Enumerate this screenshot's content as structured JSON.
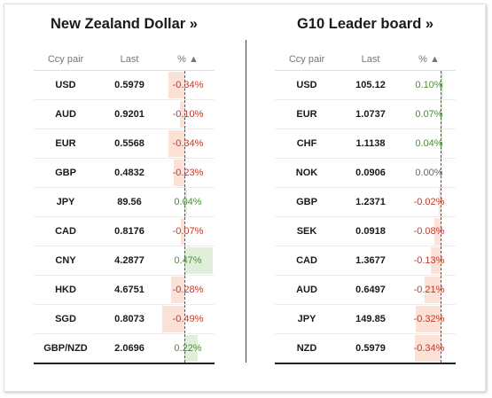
{
  "left_panel": {
    "title": "New Zealand Dollar »",
    "headers": {
      "pair": "Ccy pair",
      "last": "Last",
      "pct": "% ▲"
    },
    "zero_frac": 0.44,
    "max_abs": 0.5,
    "rows": [
      {
        "pair": "USD",
        "last": "0.5979",
        "pct": "-0.34%",
        "value": -0.34
      },
      {
        "pair": "AUD",
        "last": "0.9201",
        "pct": "-0.10%",
        "value": -0.1
      },
      {
        "pair": "EUR",
        "last": "0.5568",
        "pct": "-0.34%",
        "value": -0.34
      },
      {
        "pair": "GBP",
        "last": "0.4832",
        "pct": "-0.23%",
        "value": -0.23
      },
      {
        "pair": "JPY",
        "last": "89.56",
        "pct": "0.04%",
        "value": 0.04
      },
      {
        "pair": "CAD",
        "last": "0.8176",
        "pct": "-0.07%",
        "value": -0.07
      },
      {
        "pair": "CNY",
        "last": "4.2877",
        "pct": "0.47%",
        "value": 0.47
      },
      {
        "pair": "HKD",
        "last": "4.6751",
        "pct": "-0.28%",
        "value": -0.28
      },
      {
        "pair": "SGD",
        "last": "0.8073",
        "pct": "-0.49%",
        "value": -0.49
      },
      {
        "pair": "GBP/NZD",
        "last": "2.0696",
        "pct": "0.22%",
        "value": 0.22
      }
    ]
  },
  "right_panel": {
    "title": "G10 Leader board »",
    "headers": {
      "pair": "Ccy pair",
      "last": "Last",
      "pct": "% ▲"
    },
    "zero_frac": 0.72,
    "max_abs": 0.5,
    "rows": [
      {
        "pair": "USD",
        "last": "105.12",
        "pct": "0.10%",
        "value": 0.1
      },
      {
        "pair": "EUR",
        "last": "1.0737",
        "pct": "0.07%",
        "value": 0.07
      },
      {
        "pair": "CHF",
        "last": "1.1138",
        "pct": "0.04%",
        "value": 0.04
      },
      {
        "pair": "NOK",
        "last": "0.0906",
        "pct": "0.00%",
        "value": 0.0
      },
      {
        "pair": "GBP",
        "last": "1.2371",
        "pct": "-0.02%",
        "value": -0.02
      },
      {
        "pair": "SEK",
        "last": "0.0918",
        "pct": "-0.08%",
        "value": -0.08
      },
      {
        "pair": "CAD",
        "last": "1.3677",
        "pct": "-0.13%",
        "value": -0.13
      },
      {
        "pair": "AUD",
        "last": "0.6497",
        "pct": "-0.21%",
        "value": -0.21
      },
      {
        "pair": "JPY",
        "last": "149.85",
        "pct": "-0.32%",
        "value": -0.32
      },
      {
        "pair": "NZD",
        "last": "0.5979",
        "pct": "-0.34%",
        "value": -0.34
      }
    ]
  },
  "colors": {
    "negative_text": "#c0392b",
    "positive_text": "#4d8a3a",
    "negative_bar": "#fbe1d6",
    "positive_bar": "#dfefd9"
  }
}
